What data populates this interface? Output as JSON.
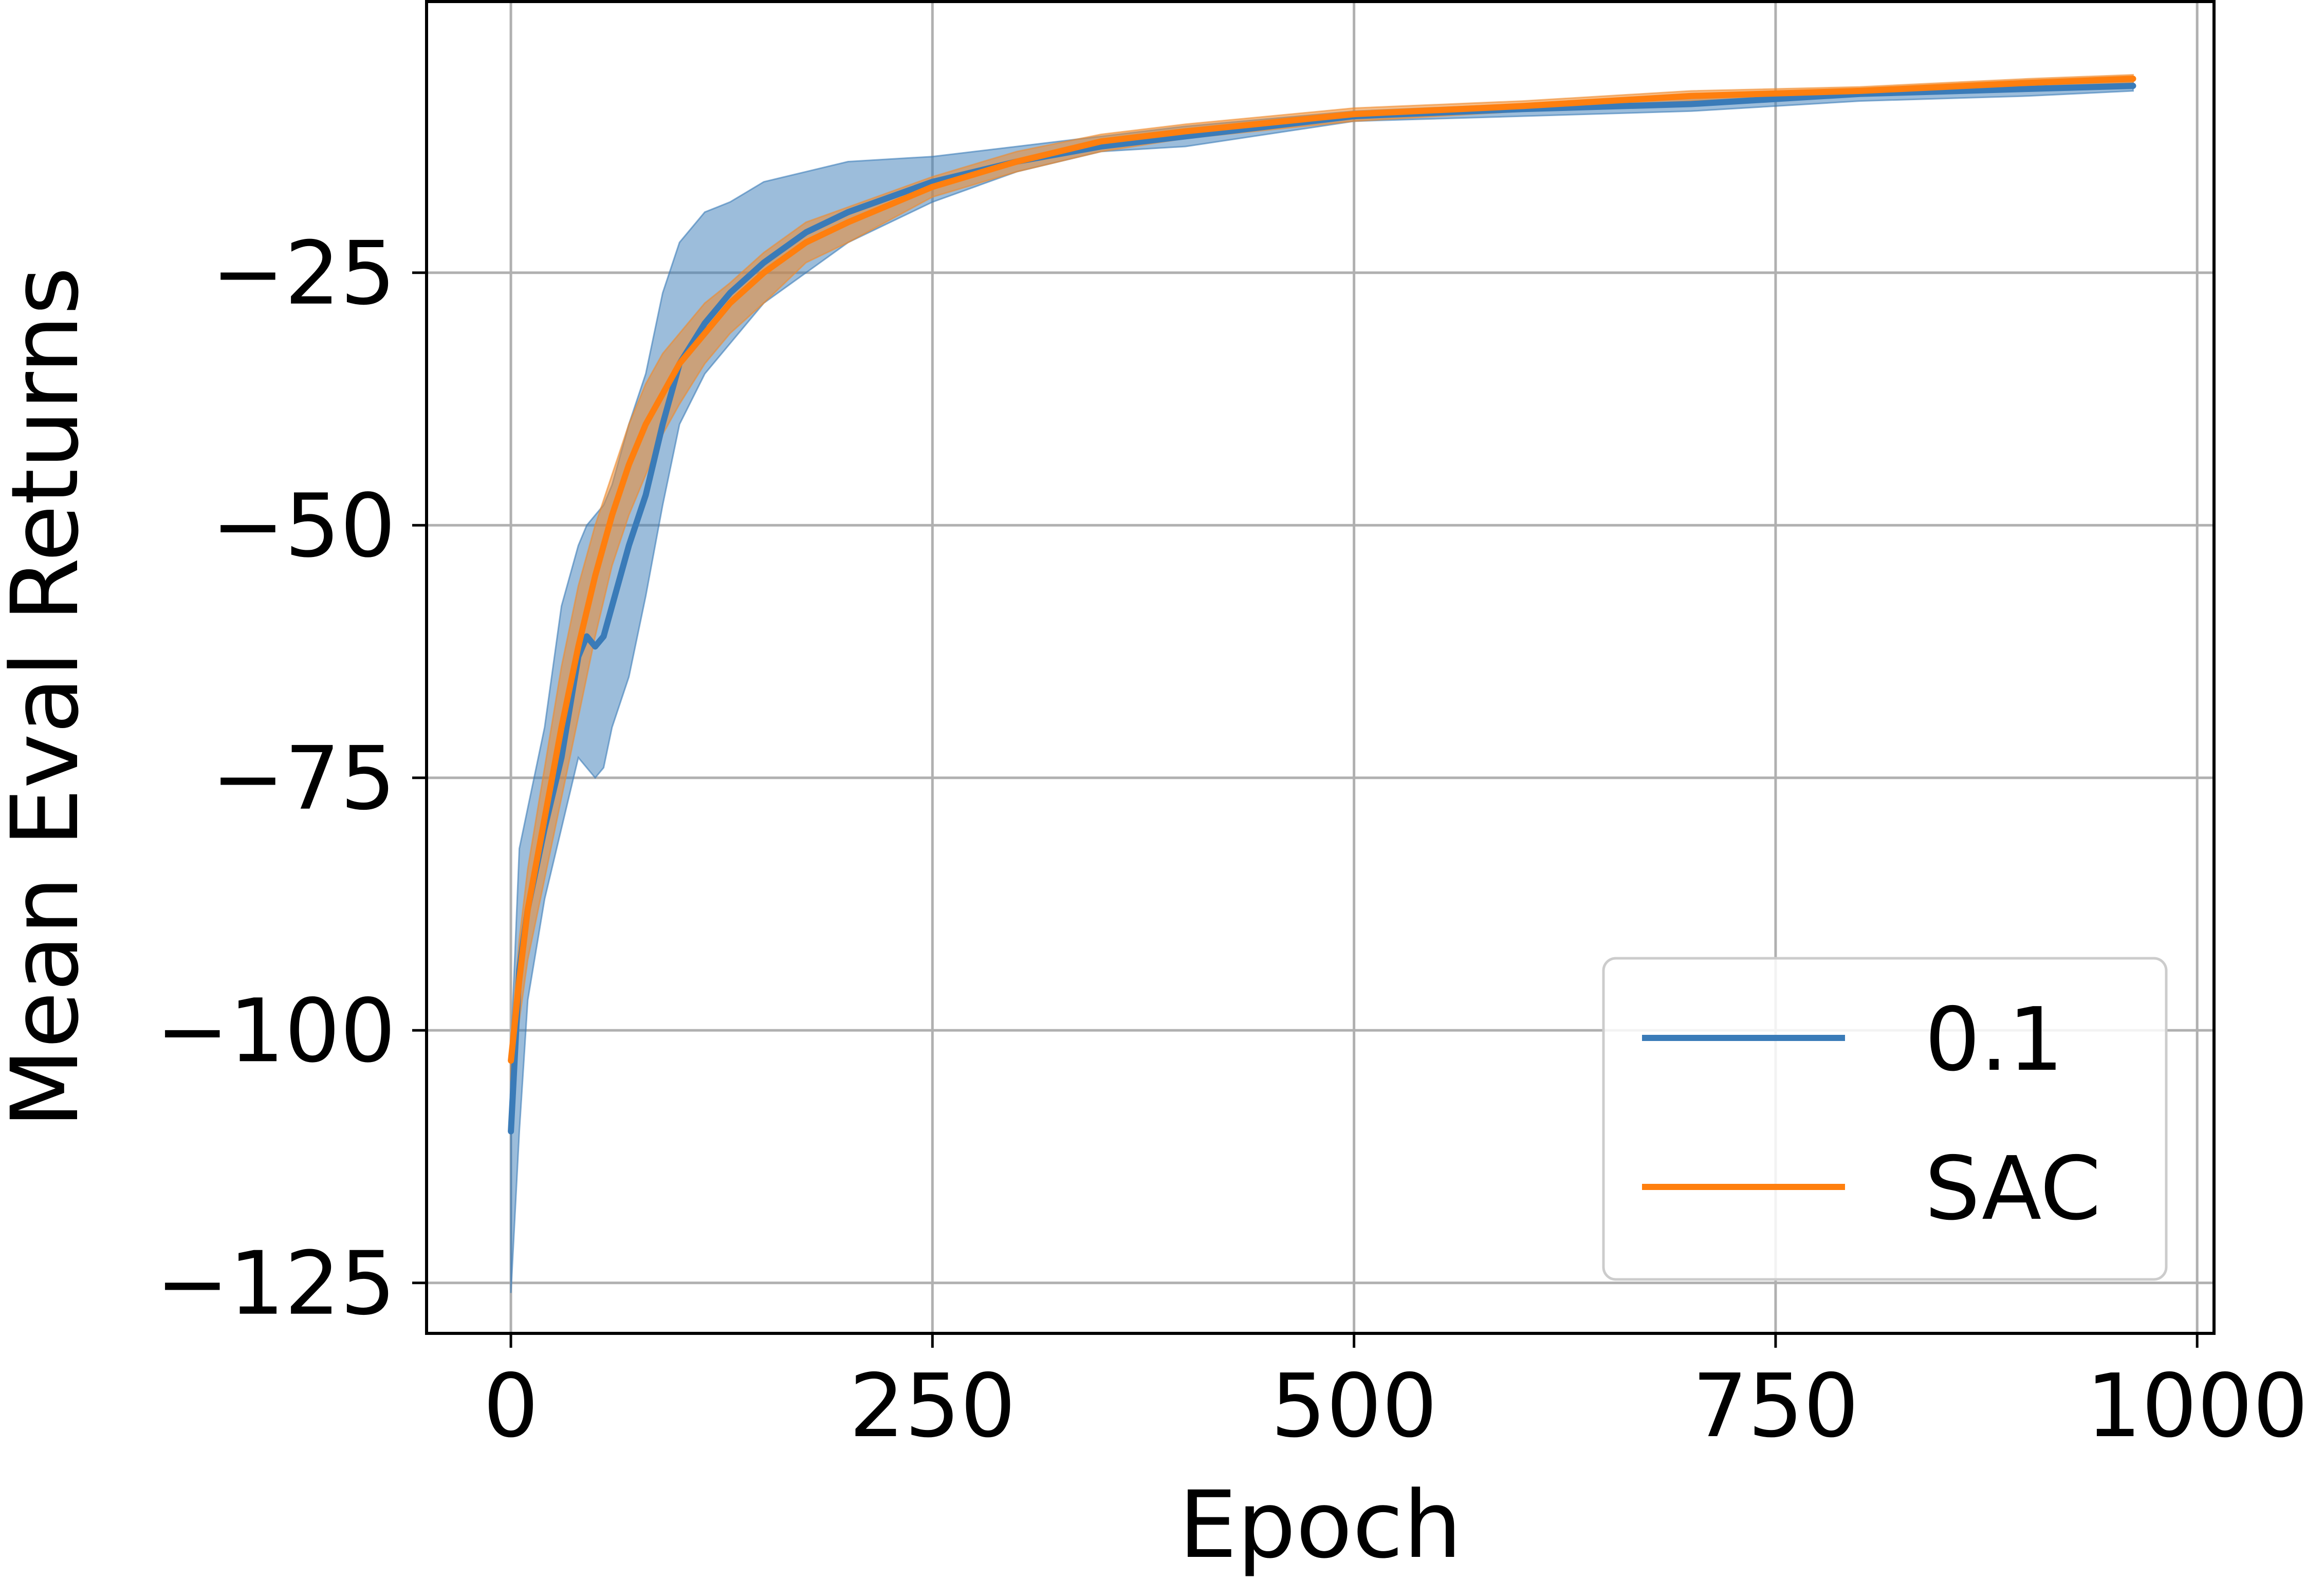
{
  "chart_data": {
    "type": "line",
    "xlabel": "Epoch",
    "ylabel": "Mean Eval Returns",
    "xlim": [
      -50,
      1010
    ],
    "ylim": [
      -130,
      2
    ],
    "xticks": [
      0,
      250,
      500,
      750,
      1000
    ],
    "yticks": [
      -125,
      -100,
      -75,
      -50,
      -25
    ],
    "xtick_labels": [
      "0",
      "250",
      "500",
      "750",
      "1000"
    ],
    "ytick_labels": [
      "−125",
      "−100",
      "−75",
      "−50",
      "−25"
    ],
    "grid": true,
    "legend_position": "lower-right",
    "series": [
      {
        "name": "0.1",
        "color": "#3a7bb8",
        "band_color": "#3a7bb8",
        "x": [
          0,
          5,
          10,
          20,
          30,
          40,
          45,
          50,
          55,
          60,
          70,
          80,
          90,
          100,
          115,
          130,
          150,
          175,
          200,
          250,
          300,
          350,
          400,
          500,
          600,
          700,
          800,
          900,
          962
        ],
        "y": [
          -110,
          -94,
          -88,
          -80,
          -73,
          -63,
          -61,
          -62,
          -61,
          -58,
          -52,
          -47,
          -40,
          -34,
          -30,
          -27,
          -24,
          -21,
          -19,
          -16,
          -14,
          -12.5,
          -11.5,
          -9.5,
          -8.8,
          -8.3,
          -7.3,
          -6.8,
          -6.5
        ],
        "lower": [
          -126,
          -110,
          -97,
          -87,
          -80,
          -73,
          -74,
          -75,
          -74,
          -70,
          -65,
          -57,
          -48,
          -40,
          -35,
          -32,
          -28,
          -25,
          -22,
          -18,
          -15,
          -13,
          -12.5,
          -10,
          -9.5,
          -9,
          -8,
          -7.5,
          -7
        ],
        "upper": [
          -102,
          -82,
          -78,
          -70,
          -58,
          -52,
          -50,
          -49,
          -48,
          -46,
          -40,
          -35,
          -27,
          -22,
          -19,
          -18,
          -16,
          -15,
          -14,
          -13.5,
          -12.5,
          -11.5,
          -10.5,
          -9,
          -8.3,
          -7.7,
          -7,
          -6.4,
          -6
        ]
      },
      {
        "name": "SAC",
        "color": "#ff7f0e",
        "band_color": "#f08a2c",
        "x": [
          0,
          5,
          10,
          20,
          30,
          40,
          50,
          60,
          70,
          80,
          90,
          100,
          115,
          130,
          150,
          175,
          200,
          250,
          300,
          350,
          400,
          500,
          600,
          700,
          800,
          900,
          962
        ],
        "y": [
          -103,
          -95,
          -88,
          -79,
          -70,
          -62,
          -55,
          -49,
          -44,
          -40,
          -37,
          -34,
          -31,
          -28,
          -25,
          -22,
          -20,
          -16.5,
          -14,
          -12,
          -11,
          -9.3,
          -8.5,
          -7.5,
          -7,
          -6.2,
          -5.8
        ],
        "lower": [
          -105,
          -99,
          -93,
          -85,
          -77,
          -69,
          -61,
          -54,
          -49,
          -45,
          -41,
          -38,
          -34,
          -31,
          -28,
          -24,
          -22,
          -17.5,
          -15,
          -13,
          -11.7,
          -10,
          -9,
          -8,
          -7.4,
          -6.7,
          -6.2
        ],
        "upper": [
          -101,
          -91,
          -84,
          -74,
          -64,
          -56,
          -50,
          -45,
          -40,
          -36,
          -33,
          -31,
          -28,
          -26,
          -23,
          -20,
          -18.5,
          -15.5,
          -13,
          -11.3,
          -10.3,
          -8.7,
          -8,
          -7,
          -6.6,
          -5.8,
          -5.4
        ]
      }
    ]
  }
}
